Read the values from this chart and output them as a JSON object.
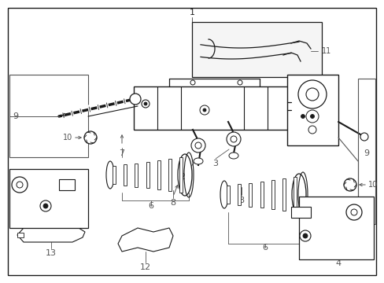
{
  "bg_color": "#ffffff",
  "line_color": "#1a1a1a",
  "label_color": "#222222",
  "dim_color": "#555555",
  "fig_width": 4.89,
  "fig_height": 3.6,
  "dpi": 100
}
